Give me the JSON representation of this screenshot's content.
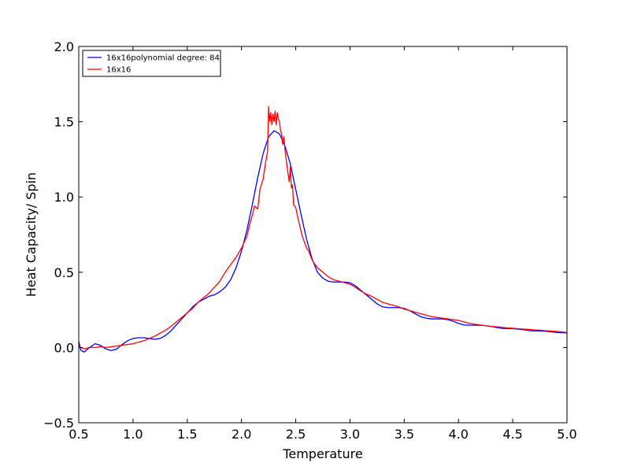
{
  "chart_data": {
    "type": "line",
    "xlabel": "Temperature",
    "ylabel": "Heat Capacity/ Spin",
    "xlim": [
      0.5,
      5.0
    ],
    "ylim": [
      -0.5,
      2.0
    ],
    "x_ticks": [
      0.5,
      1.0,
      1.5,
      2.0,
      2.5,
      3.0,
      3.5,
      4.0,
      4.5,
      5.0
    ],
    "x_tick_labels": [
      "0.5",
      "1.0",
      "1.5",
      "2.0",
      "2.5",
      "3.0",
      "3.5",
      "4.0",
      "4.5",
      "5.0"
    ],
    "y_ticks": [
      -0.5,
      0.0,
      0.5,
      1.0,
      1.5,
      2.0
    ],
    "y_tick_labels": [
      "−0.5",
      "0.0",
      "0.5",
      "1.0",
      "1.5",
      "2.0"
    ],
    "grid": false,
    "legend_position": "top-left",
    "series": [
      {
        "name": "16x16polynomial degree: 84",
        "color": "#0000ff",
        "x": [
          0.5,
          0.52,
          0.55,
          0.6,
          0.65,
          0.7,
          0.75,
          0.8,
          0.85,
          0.9,
          0.95,
          1.0,
          1.05,
          1.1,
          1.15,
          1.2,
          1.25,
          1.3,
          1.35,
          1.4,
          1.45,
          1.5,
          1.55,
          1.6,
          1.65,
          1.7,
          1.75,
          1.8,
          1.85,
          1.9,
          1.95,
          2.0,
          2.05,
          2.1,
          2.15,
          2.2,
          2.25,
          2.3,
          2.35,
          2.4,
          2.45,
          2.5,
          2.55,
          2.6,
          2.65,
          2.7,
          2.75,
          2.8,
          2.85,
          2.9,
          2.95,
          3.0,
          3.05,
          3.1,
          3.15,
          3.2,
          3.25,
          3.3,
          3.35,
          3.4,
          3.45,
          3.5,
          3.55,
          3.6,
          3.65,
          3.7,
          3.75,
          3.8,
          3.85,
          3.9,
          3.95,
          4.0,
          4.05,
          4.1,
          4.15,
          4.2,
          4.25,
          4.3,
          4.35,
          4.4,
          4.45,
          4.5,
          4.55,
          4.6,
          4.65,
          4.7,
          4.75,
          4.8,
          4.85,
          4.9,
          4.95,
          5.0
        ],
        "y": [
          0.04,
          -0.02,
          -0.03,
          0.0,
          0.025,
          0.015,
          -0.01,
          -0.02,
          -0.01,
          0.02,
          0.045,
          0.06,
          0.065,
          0.065,
          0.06,
          0.055,
          0.06,
          0.08,
          0.11,
          0.15,
          0.19,
          0.23,
          0.27,
          0.3,
          0.32,
          0.34,
          0.35,
          0.37,
          0.4,
          0.45,
          0.53,
          0.64,
          0.78,
          0.95,
          1.13,
          1.29,
          1.4,
          1.44,
          1.42,
          1.34,
          1.22,
          1.05,
          0.88,
          0.72,
          0.59,
          0.5,
          0.46,
          0.44,
          0.435,
          0.435,
          0.435,
          0.43,
          0.41,
          0.38,
          0.35,
          0.32,
          0.29,
          0.27,
          0.265,
          0.265,
          0.265,
          0.26,
          0.245,
          0.225,
          0.205,
          0.195,
          0.19,
          0.19,
          0.19,
          0.185,
          0.175,
          0.16,
          0.15,
          0.148,
          0.148,
          0.148,
          0.145,
          0.14,
          0.133,
          0.127,
          0.125,
          0.125,
          0.122,
          0.118,
          0.112,
          0.11,
          0.11,
          0.108,
          0.104,
          0.1,
          0.098,
          0.097
        ]
      },
      {
        "name": "16x16",
        "color": "#ff0000",
        "x": [
          0.5,
          0.52,
          0.55,
          0.6,
          0.65,
          0.7,
          0.75,
          0.8,
          0.85,
          0.9,
          0.95,
          1.0,
          1.05,
          1.1,
          1.15,
          1.2,
          1.25,
          1.3,
          1.35,
          1.4,
          1.45,
          1.5,
          1.55,
          1.6,
          1.65,
          1.7,
          1.75,
          1.8,
          1.85,
          1.9,
          1.95,
          2.0,
          2.05,
          2.08,
          2.1,
          2.12,
          2.15,
          2.17,
          2.2,
          2.22,
          2.24,
          2.25,
          2.26,
          2.27,
          2.28,
          2.29,
          2.3,
          2.31,
          2.32,
          2.33,
          2.34,
          2.35,
          2.36,
          2.37,
          2.38,
          2.39,
          2.4,
          2.42,
          2.44,
          2.45,
          2.46,
          2.47,
          2.48,
          2.5,
          2.52,
          2.54,
          2.56,
          2.58,
          2.6,
          2.62,
          2.64,
          2.66,
          2.68,
          2.7,
          2.75,
          2.8,
          2.85,
          2.9,
          2.95,
          3.0,
          3.05,
          3.1,
          3.15,
          3.2,
          3.25,
          3.3,
          3.35,
          3.4,
          3.45,
          3.5,
          3.55,
          3.6,
          3.65,
          3.7,
          3.75,
          3.8,
          3.85,
          3.9,
          3.95,
          4.0,
          4.05,
          4.1,
          4.15,
          4.2,
          4.25,
          4.3,
          4.35,
          4.4,
          4.45,
          4.5,
          4.55,
          4.6,
          4.65,
          4.7,
          4.75,
          4.8,
          4.85,
          4.9,
          4.95,
          5.0
        ],
        "y": [
          0.01,
          0.0,
          -0.01,
          0.0,
          0.0,
          0.005,
          0.0,
          0.005,
          0.01,
          0.015,
          0.02,
          0.025,
          0.035,
          0.045,
          0.06,
          0.075,
          0.095,
          0.115,
          0.14,
          0.17,
          0.2,
          0.23,
          0.26,
          0.3,
          0.33,
          0.36,
          0.4,
          0.44,
          0.5,
          0.55,
          0.6,
          0.66,
          0.74,
          0.83,
          0.88,
          0.94,
          0.92,
          1.05,
          1.12,
          1.22,
          1.3,
          1.6,
          1.5,
          1.56,
          1.48,
          1.55,
          1.5,
          1.57,
          1.48,
          1.56,
          1.52,
          1.5,
          1.44,
          1.42,
          1.35,
          1.4,
          1.32,
          1.2,
          1.1,
          1.2,
          1.06,
          1.08,
          0.95,
          0.93,
          0.86,
          0.8,
          0.74,
          0.7,
          0.66,
          0.64,
          0.6,
          0.57,
          0.55,
          0.53,
          0.5,
          0.47,
          0.45,
          0.44,
          0.43,
          0.42,
          0.4,
          0.375,
          0.355,
          0.34,
          0.32,
          0.3,
          0.29,
          0.28,
          0.27,
          0.255,
          0.245,
          0.235,
          0.225,
          0.215,
          0.205,
          0.2,
          0.195,
          0.19,
          0.185,
          0.18,
          0.17,
          0.16,
          0.155,
          0.15,
          0.145,
          0.14,
          0.138,
          0.135,
          0.13,
          0.128,
          0.125,
          0.122,
          0.12,
          0.117,
          0.115,
          0.112,
          0.11,
          0.107,
          0.104,
          0.1
        ]
      }
    ]
  }
}
